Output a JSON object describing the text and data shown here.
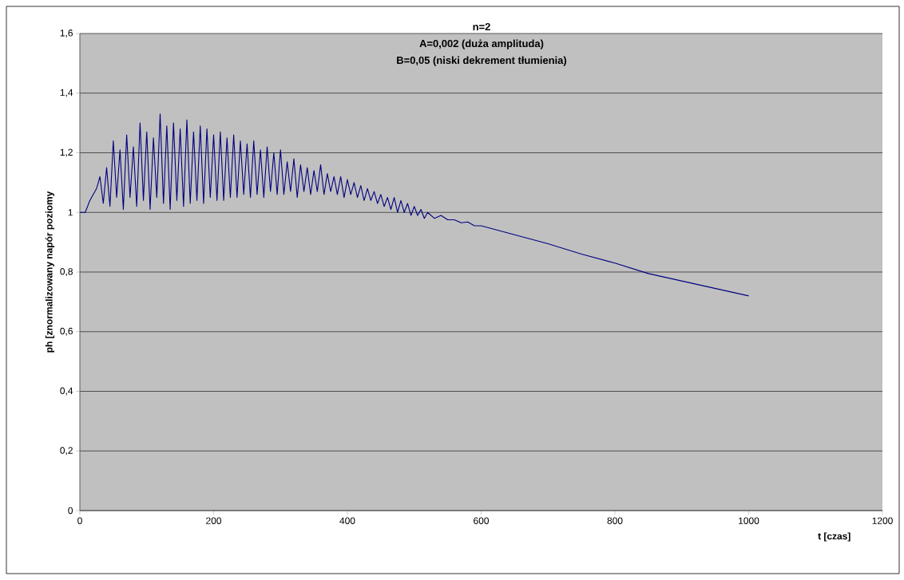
{
  "chart_data": {
    "type": "line",
    "title": "n=2",
    "subtitle": "A=0,002 (duża amplituda)",
    "annotations": [
      "B=0,05 (niski dekrement tłumienia)"
    ],
    "xlabel": "t [czas]",
    "ylabel": "ph [znormalizowany napór poziomy",
    "x": [
      0,
      8,
      15,
      25,
      30,
      35,
      40,
      45,
      50,
      55,
      60,
      65,
      70,
      75,
      80,
      85,
      90,
      95,
      100,
      105,
      110,
      115,
      120,
      125,
      130,
      135,
      140,
      145,
      150,
      155,
      160,
      165,
      170,
      175,
      180,
      185,
      190,
      195,
      200,
      205,
      210,
      215,
      220,
      225,
      230,
      235,
      240,
      245,
      250,
      255,
      260,
      265,
      270,
      275,
      280,
      285,
      290,
      295,
      300,
      305,
      310,
      315,
      320,
      325,
      330,
      335,
      340,
      345,
      350,
      355,
      360,
      365,
      370,
      375,
      380,
      385,
      390,
      395,
      400,
      405,
      410,
      415,
      420,
      425,
      430,
      435,
      440,
      445,
      450,
      455,
      460,
      465,
      470,
      475,
      480,
      485,
      490,
      495,
      500,
      505,
      510,
      515,
      520,
      530,
      540,
      550,
      560,
      570,
      580,
      590,
      600,
      650,
      700,
      750,
      800,
      850,
      900,
      950,
      1000
    ],
    "series": [
      {
        "color": "#000080",
        "values": [
          1.0,
          1.0,
          1.04,
          1.08,
          1.12,
          1.03,
          1.15,
          1.02,
          1.24,
          1.05,
          1.21,
          1.01,
          1.26,
          1.05,
          1.22,
          1.02,
          1.3,
          1.04,
          1.27,
          1.01,
          1.25,
          1.05,
          1.33,
          1.03,
          1.29,
          1.01,
          1.3,
          1.04,
          1.28,
          1.02,
          1.31,
          1.03,
          1.27,
          1.04,
          1.29,
          1.03,
          1.28,
          1.05,
          1.26,
          1.04,
          1.27,
          1.04,
          1.25,
          1.05,
          1.26,
          1.05,
          1.24,
          1.06,
          1.23,
          1.05,
          1.24,
          1.06,
          1.21,
          1.05,
          1.22,
          1.07,
          1.2,
          1.06,
          1.21,
          1.06,
          1.17,
          1.07,
          1.18,
          1.05,
          1.16,
          1.07,
          1.15,
          1.06,
          1.14,
          1.07,
          1.16,
          1.06,
          1.13,
          1.07,
          1.12,
          1.06,
          1.12,
          1.05,
          1.11,
          1.06,
          1.1,
          1.05,
          1.09,
          1.04,
          1.08,
          1.04,
          1.07,
          1.03,
          1.06,
          1.02,
          1.05,
          1.01,
          1.05,
          1.0,
          1.04,
          1.0,
          1.03,
          0.99,
          1.02,
          0.99,
          1.01,
          0.98,
          1.0,
          0.98,
          0.99,
          0.975,
          0.975,
          0.965,
          0.968,
          0.955,
          0.955,
          0.925,
          0.895,
          0.86,
          0.83,
          0.795,
          0.77,
          0.745,
          0.72
        ]
      }
    ],
    "xlim": [
      0,
      1200
    ],
    "xticks": [
      0,
      200,
      400,
      600,
      800,
      1000,
      1200
    ],
    "ylim": [
      0,
      1.6
    ],
    "yticks": [
      0,
      {
        "value": 0.2,
        "label": "0,2"
      },
      {
        "value": 0.4,
        "label": "0,4"
      },
      {
        "value": 0.6,
        "label": "0,6"
      },
      {
        "value": 0.8,
        "label": "0,8"
      },
      1,
      {
        "value": 1.2,
        "label": "1,2"
      },
      {
        "value": 1.4,
        "label": "1,4"
      },
      {
        "value": 1.6,
        "label": "1,6"
      }
    ],
    "grid": "y"
  }
}
